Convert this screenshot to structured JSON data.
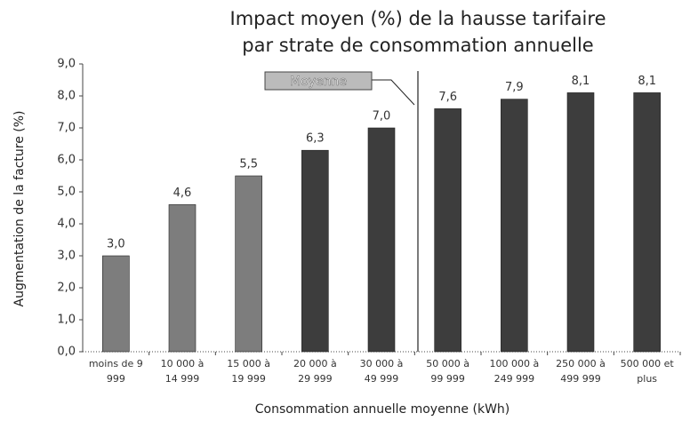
{
  "chart_data": {
    "type": "bar",
    "title": [
      "Impact moyen (%) de la hausse tarifaire",
      "par strate de consommation annuelle"
    ],
    "x_label": "Consommation annuelle moyenne (kWh)",
    "y_label": "Augmentation de la facture  (%)",
    "annotation": "Moyenne",
    "categories": [
      [
        "moins de 9",
        "999"
      ],
      [
        "10 000 à",
        "14 999"
      ],
      [
        "15 000 à",
        "19 999"
      ],
      [
        "20 000 à",
        "29 999"
      ],
      [
        "30 000 à",
        "49 999"
      ],
      [
        "50 000 à",
        "99 999"
      ],
      [
        "100 000 à",
        "249 999"
      ],
      [
        "250 000 à",
        "499 999"
      ],
      [
        "500 000 et",
        "plus"
      ]
    ],
    "values": [
      3.0,
      4.6,
      5.5,
      6.3,
      7.0,
      7.6,
      7.9,
      8.1,
      8.1
    ],
    "value_labels": [
      "3,0",
      "4,6",
      "5,5",
      "6,3",
      "7,0",
      "7,6",
      "7,9",
      "8,1",
      "8,1"
    ],
    "colors": [
      "#7d7d7d",
      "#7d7d7d",
      "#7d7d7d",
      "#3d3d3d",
      "#3d3d3d",
      "#3d3d3d",
      "#3d3d3d",
      "#3d3d3d",
      "#3d3d3d"
    ],
    "ylim": [
      0,
      9
    ],
    "yticks": [
      {
        "value": 0,
        "label": "0,0"
      },
      {
        "value": 1,
        "label": "1,0"
      },
      {
        "value": 2,
        "label": "2,0"
      },
      {
        "value": 3,
        "label": "3,0"
      },
      {
        "value": 4,
        "label": "4,0"
      },
      {
        "value": 5,
        "label": "5,0"
      },
      {
        "value": 6,
        "label": "6,0"
      },
      {
        "value": 7,
        "label": "7,0"
      },
      {
        "value": 8,
        "label": "8,0"
      },
      {
        "value": 9,
        "label": "9,0"
      }
    ],
    "grid": false
  }
}
